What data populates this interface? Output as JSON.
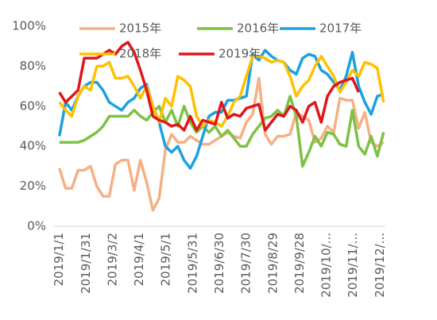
{
  "chart_data": {
    "type": "line",
    "x": [
      0,
      7,
      14,
      21,
      28,
      35,
      42,
      49,
      56,
      63,
      70,
      77,
      84,
      91,
      98,
      105,
      112,
      119,
      126,
      133,
      140,
      147,
      154,
      161,
      168,
      175,
      182,
      189,
      196,
      203,
      210,
      217,
      224,
      231,
      238,
      245,
      252,
      259,
      266,
      273,
      280,
      287,
      294,
      301,
      308,
      315,
      322,
      329,
      336,
      343,
      350,
      357,
      364
    ],
    "xlim": [
      -6,
      366
    ],
    "xticks": [
      {
        "value": 0,
        "label": "2019/1/1"
      },
      {
        "value": 30,
        "label": "2019/1/31"
      },
      {
        "value": 60,
        "label": "2019/3/2"
      },
      {
        "value": 90,
        "label": "2019/4/1"
      },
      {
        "value": 120,
        "label": "2019/5/1"
      },
      {
        "value": 150,
        "label": "2019/5/31"
      },
      {
        "value": 180,
        "label": "2019/6/30"
      },
      {
        "value": 210,
        "label": "2019/7/30"
      },
      {
        "value": 240,
        "label": "2019/8/29"
      },
      {
        "value": 270,
        "label": "2019/9/28"
      },
      {
        "value": 300,
        "label": "2019/10/..."
      },
      {
        "value": 330,
        "label": "2019/11/..."
      },
      {
        "value": 360,
        "label": "2019/12/..."
      }
    ],
    "ylim": [
      0,
      100
    ],
    "yticks": [
      {
        "value": 0,
        "label": "0%"
      },
      {
        "value": 20,
        "label": "20%"
      },
      {
        "value": 40,
        "label": "40%"
      },
      {
        "value": 60,
        "label": "60%"
      },
      {
        "value": 80,
        "label": "80%"
      },
      {
        "value": 100,
        "label": "100%"
      }
    ],
    "grid": false,
    "legend": "top",
    "series": [
      {
        "name": "2015年",
        "color": "#f4b183",
        "values": [
          29,
          19,
          19,
          28,
          28,
          30,
          20,
          15,
          15,
          31,
          33,
          33,
          18,
          33,
          22,
          8,
          14,
          38,
          46,
          42,
          42,
          45,
          43,
          41,
          41,
          43,
          45,
          47,
          45,
          44,
          52,
          56,
          74,
          46,
          41,
          45,
          45,
          46,
          57,
          55,
          53,
          42,
          44,
          50,
          47,
          64,
          63,
          63,
          49,
          57,
          42,
          40,
          42
        ]
      },
      {
        "name": "2016年",
        "color": "#7dc244",
        "values": [
          42,
          42,
          42,
          42,
          43,
          45,
          47,
          50,
          55,
          55,
          55,
          55,
          58,
          55,
          53,
          57,
          60,
          52,
          58,
          50,
          60,
          52,
          47,
          50,
          47,
          50,
          45,
          48,
          44,
          40,
          40,
          46,
          50,
          54,
          55,
          58,
          55,
          65,
          55,
          30,
          37,
          45,
          40,
          47,
          46,
          41,
          40,
          58,
          40,
          36,
          45,
          35,
          47
        ]
      },
      {
        "name": "2017年",
        "color": "#1ba1e2",
        "values": [
          45,
          62,
          58,
          65,
          70,
          72,
          72,
          68,
          62,
          60,
          58,
          62,
          64,
          69,
          71,
          60,
          52,
          40,
          37,
          40,
          33,
          29,
          35,
          45,
          55,
          57,
          57,
          63,
          63,
          64,
          65,
          86,
          83,
          88,
          85,
          83,
          82,
          78,
          76,
          84,
          86,
          85,
          78,
          76,
          72,
          68,
          75,
          87,
          70,
          62,
          56,
          65,
          66
        ]
      },
      {
        "name": "2018年",
        "color": "#ffc000",
        "values": [
          62,
          58,
          55,
          65,
          70,
          68,
          80,
          80,
          82,
          74,
          74,
          75,
          70,
          64,
          70,
          60,
          52,
          64,
          60,
          75,
          73,
          70,
          55,
          50,
          53,
          52,
          50,
          55,
          62,
          65,
          75,
          85,
          85,
          84,
          82,
          83,
          82,
          75,
          65,
          70,
          73,
          80,
          85,
          80,
          75,
          67,
          72,
          78,
          75,
          82,
          81,
          79,
          62
        ]
      },
      {
        "name": "2019年",
        "color": "#e0161c",
        "values": [
          67,
          62,
          65,
          68,
          84,
          84,
          84,
          86,
          88,
          86,
          90,
          92,
          87,
          78,
          68,
          55,
          53,
          52,
          50,
          51,
          48,
          55,
          48,
          53,
          52,
          51,
          62,
          54,
          56,
          55,
          59,
          60,
          61,
          48,
          52,
          56,
          55,
          60,
          58,
          52,
          60,
          62,
          52,
          65,
          70,
          72,
          73,
          74,
          67,
          null,
          null,
          null,
          null
        ]
      }
    ]
  }
}
